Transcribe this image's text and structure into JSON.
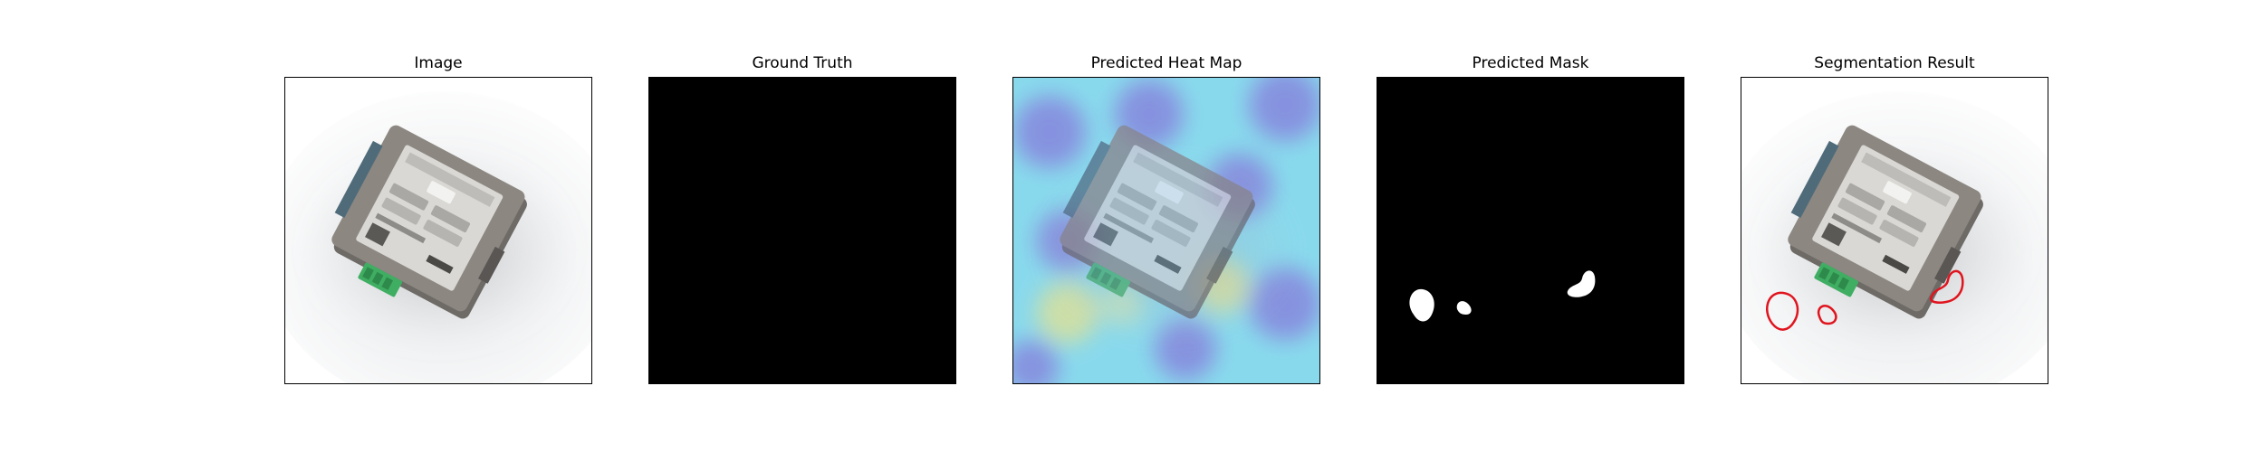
{
  "figure": {
    "panels": [
      {
        "title": "Image",
        "icon": "product-photo"
      },
      {
        "title": "Ground Truth",
        "icon": "empty-mask"
      },
      {
        "title": "Predicted Heat Map",
        "icon": "heatmap-overlay"
      },
      {
        "title": "Predicted Mask",
        "icon": "binary-mask"
      },
      {
        "title": "Segmentation Result",
        "icon": "contour-overlay"
      }
    ],
    "colors": {
      "background": "#ffffff",
      "mask_background": "#000000",
      "mask_foreground": "#ffffff",
      "contour": "#e0141e",
      "heatmap_low": "#8a8fe0",
      "heatmap_mid": "#8ee8f0",
      "heatmap_high": "#e3ef9a"
    }
  }
}
